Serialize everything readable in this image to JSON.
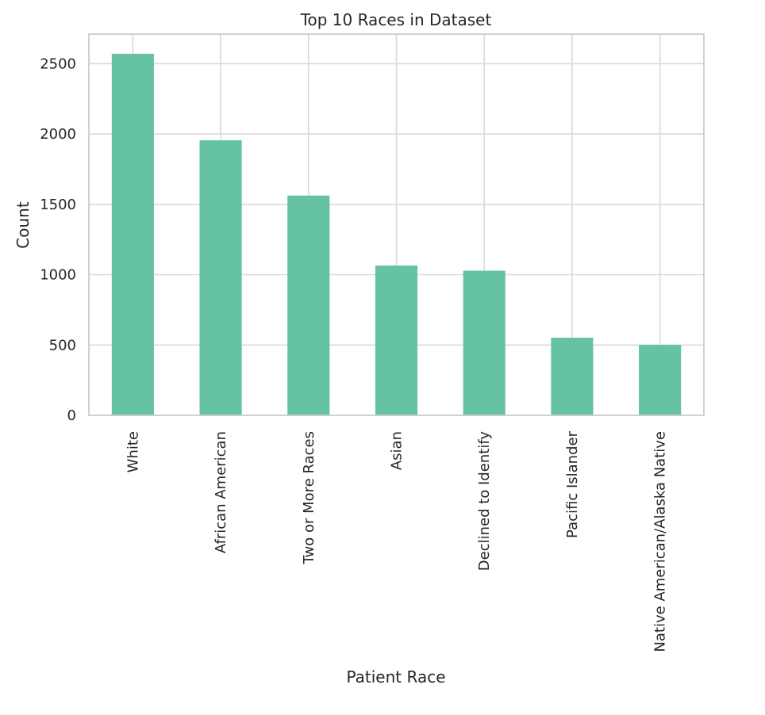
{
  "chart_data": {
    "type": "bar",
    "title": "Top 10 Races in Dataset",
    "xlabel": "Patient Race",
    "ylabel": "Count",
    "categories": [
      "White",
      "African American",
      "Two or More Races",
      "Asian",
      "Declined to Identify",
      "Pacific Islander",
      "Native American/Alaska Native"
    ],
    "values": [
      2570,
      1955,
      1562,
      1065,
      1028,
      552,
      501
    ],
    "ylim": [
      0,
      2710
    ],
    "yticks": [
      0,
      500,
      1000,
      1500,
      2000,
      2500
    ],
    "grid": true,
    "bar_color": "#66c2a5"
  }
}
